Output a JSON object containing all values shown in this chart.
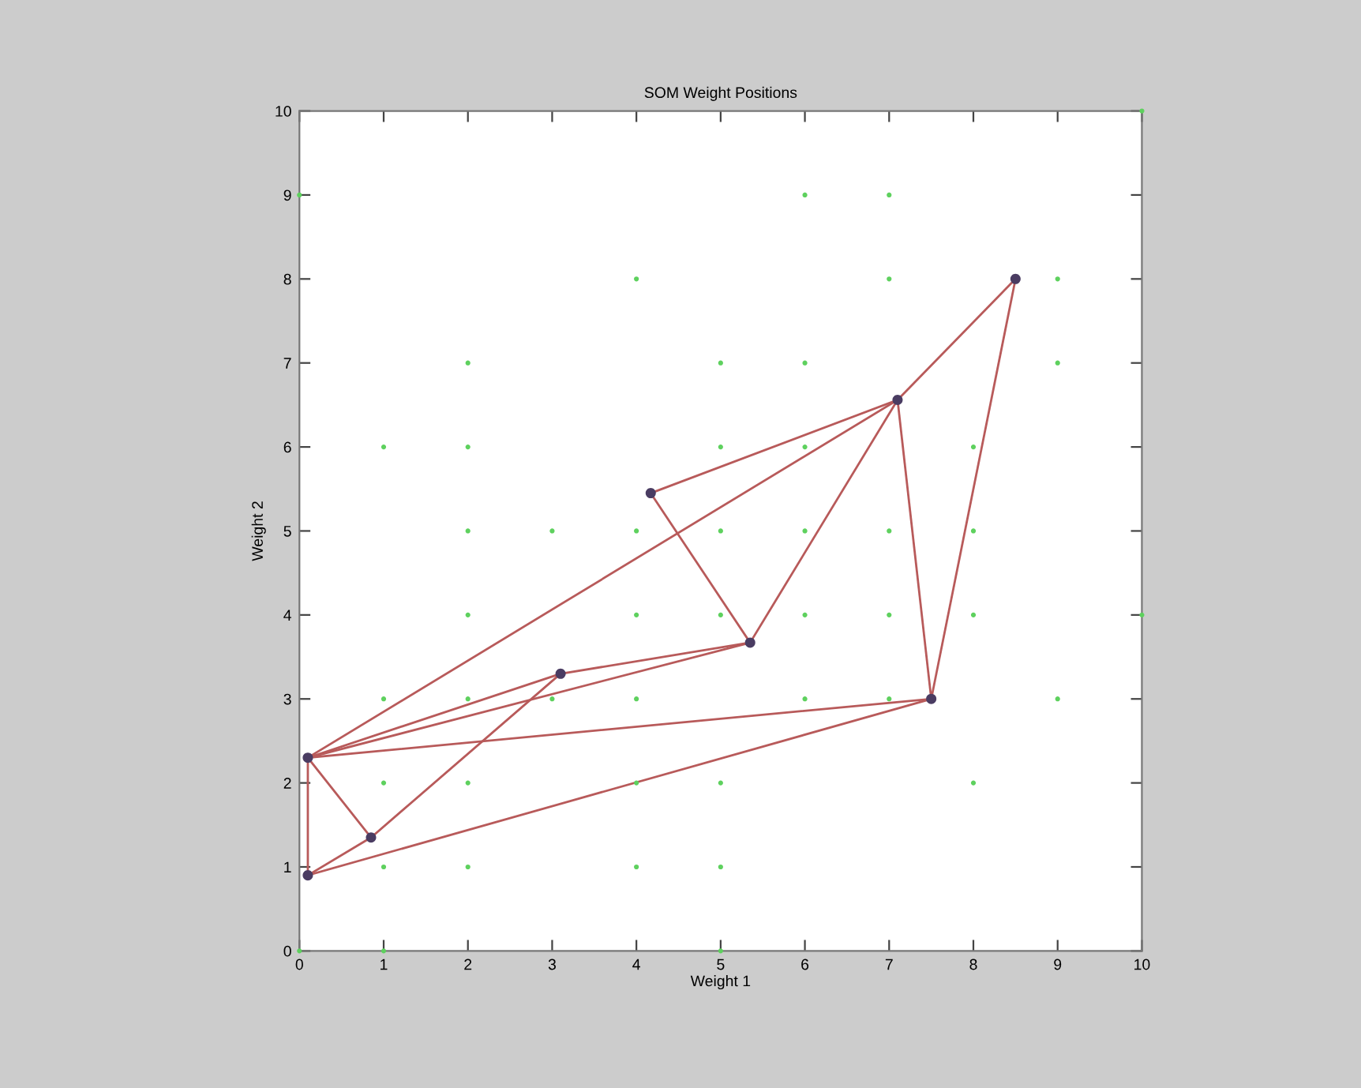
{
  "chart_data": {
    "type": "scatter",
    "title": "SOM Weight Positions",
    "xlabel": "Weight 1",
    "ylabel": "Weight 2",
    "xlim": [
      0,
      10
    ],
    "ylim": [
      0,
      10
    ],
    "xticks": [
      0,
      1,
      2,
      3,
      4,
      5,
      6,
      7,
      8,
      9,
      10
    ],
    "yticks": [
      0,
      1,
      2,
      3,
      4,
      5,
      6,
      7,
      8,
      9,
      10
    ],
    "grid": false,
    "legend": false,
    "series": [
      {
        "marker": "circle",
        "color": "#5ed15e",
        "x": [
          0,
          6,
          7,
          4,
          7,
          9,
          2,
          5,
          6,
          9,
          1,
          2,
          5,
          6,
          8,
          2,
          3,
          4,
          5,
          6,
          7,
          8,
          2,
          4,
          5,
          6,
          7,
          8,
          10,
          1,
          2,
          3,
          4,
          6,
          7,
          9,
          1,
          2,
          4,
          5,
          8,
          1,
          2,
          4,
          5,
          0,
          1,
          5,
          10
        ],
        "values": [
          9,
          9,
          9,
          8,
          8,
          8,
          7,
          7,
          7,
          7,
          6,
          6,
          6,
          6,
          6,
          5,
          5,
          5,
          5,
          5,
          5,
          5,
          4,
          4,
          4,
          4,
          4,
          4,
          4,
          3,
          3,
          3,
          3,
          3,
          3,
          3,
          2,
          2,
          2,
          2,
          2,
          1,
          1,
          1,
          1,
          0,
          0,
          0,
          10
        ]
      },
      {
        "type": "line",
        "color": "#b85a5a",
        "x": [
          0.1,
          0.1
        ],
        "values": [
          0.9,
          2.3
        ]
      },
      {
        "type": "line",
        "color": "#b85a5a",
        "x": [
          0.1,
          0.85
        ],
        "values": [
          0.9,
          1.35
        ]
      },
      {
        "type": "line",
        "color": "#b85a5a",
        "x": [
          0.85,
          3.1
        ],
        "values": [
          1.35,
          3.3
        ]
      },
      {
        "type": "line",
        "color": "#b85a5a",
        "x": [
          0.1,
          7.5
        ],
        "values": [
          0.9,
          3.0
        ]
      },
      {
        "type": "line",
        "color": "#b85a5a",
        "x": [
          0.1,
          0.85
        ],
        "values": [
          2.3,
          1.35
        ]
      },
      {
        "type": "line",
        "color": "#b85a5a",
        "x": [
          0.1,
          3.1
        ],
        "values": [
          2.3,
          3.3
        ]
      },
      {
        "type": "line",
        "color": "#b85a5a",
        "x": [
          0.1,
          5.35
        ],
        "values": [
          2.3,
          3.67
        ]
      },
      {
        "type": "line",
        "color": "#b85a5a",
        "x": [
          0.1,
          7.1
        ],
        "values": [
          2.3,
          6.56
        ]
      },
      {
        "type": "line",
        "color": "#b85a5a",
        "x": [
          0.1,
          7.5
        ],
        "values": [
          2.3,
          3.0
        ]
      },
      {
        "type": "line",
        "color": "#b85a5a",
        "x": [
          3.1,
          5.35
        ],
        "values": [
          3.3,
          3.67
        ]
      },
      {
        "type": "line",
        "color": "#b85a5a",
        "x": [
          5.35,
          4.17
        ],
        "values": [
          3.67,
          5.45
        ]
      },
      {
        "type": "line",
        "color": "#b85a5a",
        "x": [
          4.17,
          7.1
        ],
        "values": [
          5.45,
          6.56
        ]
      },
      {
        "type": "line",
        "color": "#b85a5a",
        "x": [
          5.35,
          7.1
        ],
        "values": [
          3.67,
          6.56
        ]
      },
      {
        "type": "line",
        "color": "#b85a5a",
        "x": [
          7.1,
          7.5
        ],
        "values": [
          6.56,
          3.0
        ]
      },
      {
        "type": "line",
        "color": "#b85a5a",
        "x": [
          7.1,
          8.5
        ],
        "values": [
          6.56,
          8.0
        ]
      },
      {
        "type": "line",
        "color": "#b85a5a",
        "x": [
          7.5,
          8.5
        ],
        "values": [
          3.0,
          8.0
        ]
      },
      {
        "marker": "circle",
        "color": "#4a3c62",
        "x": [
          0.1,
          0.1,
          0.85,
          3.1,
          5.35,
          4.17,
          7.1,
          7.5,
          8.5
        ],
        "values": [
          0.9,
          2.3,
          1.35,
          3.3,
          3.67,
          5.45,
          6.56,
          3.0,
          8.0
        ]
      }
    ]
  }
}
